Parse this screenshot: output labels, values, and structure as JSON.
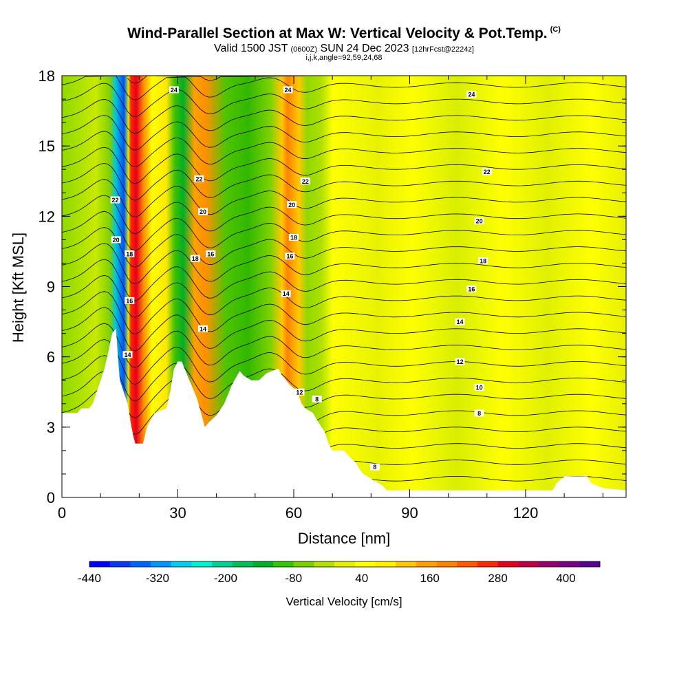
{
  "title": {
    "main": "Wind-Parallel Section at Max W: Vertical Velocity & Pot.Temp.",
    "copyright": "(C)",
    "valid_prefix": "Valid 1500 JST",
    "valid_utc": "(0600Z)",
    "valid_date": "SUN 24 Dec 2023",
    "forecast": "[12hrFcst@2224z]",
    "indices": "i,j,k,angle=92,59,24,68"
  },
  "chart_data": {
    "type": "heatmap",
    "xlabel": "Distance [nm]",
    "ylabel": "Height [Kft MSL]",
    "xlim": [
      0,
      146
    ],
    "ylim": [
      0,
      18
    ],
    "x_ticks": [
      0,
      30,
      60,
      90,
      120
    ],
    "y_ticks": [
      0,
      3,
      6,
      9,
      12,
      15,
      18
    ],
    "colorbar": {
      "label": "Vertical Velocity [cm/s]",
      "min": -440,
      "max": 460,
      "step": 40,
      "tick_values": [
        -440,
        -320,
        -200,
        -80,
        40,
        160,
        280,
        400
      ],
      "tick_labels": [
        "-440",
        "-320",
        "-200",
        "-80",
        "40",
        "160",
        "280",
        "400"
      ],
      "colors": [
        "#0000ff",
        "#0a37f5",
        "#0064ff",
        "#0096ff",
        "#00cdf0",
        "#00f0d2",
        "#00d296",
        "#00be5a",
        "#00af28",
        "#32c800",
        "#78d200",
        "#b4e100",
        "#e6f000",
        "#ffff00",
        "#fff000",
        "#ffc800",
        "#ffa000",
        "#ff8200",
        "#ff5a00",
        "#ff2800",
        "#e6001e",
        "#be0046",
        "#96006e",
        "#780087",
        "#5a0091"
      ]
    },
    "terrain_kft": [
      [
        0,
        3.6
      ],
      [
        4,
        3.6
      ],
      [
        5,
        3.8
      ],
      [
        7,
        3.8
      ],
      [
        8,
        4.0
      ],
      [
        9,
        4.5
      ],
      [
        10,
        5.0
      ],
      [
        11,
        5.5
      ],
      [
        12,
        6.2
      ],
      [
        13,
        7.0
      ],
      [
        14,
        7.2
      ],
      [
        14.5,
        6.0
      ],
      [
        15,
        5.0
      ],
      [
        16,
        4.5
      ],
      [
        17,
        4.0
      ],
      [
        18,
        3.0
      ],
      [
        18.5,
        2.6
      ],
      [
        19,
        2.3
      ],
      [
        21,
        2.3
      ],
      [
        22,
        3.0
      ],
      [
        24,
        3.6
      ],
      [
        27,
        3.8
      ],
      [
        28,
        4.5
      ],
      [
        29,
        5.5
      ],
      [
        30,
        5.8
      ],
      [
        31,
        5.8
      ],
      [
        32,
        5.4
      ],
      [
        33,
        5.0
      ],
      [
        34,
        4.6
      ],
      [
        35,
        4.2
      ],
      [
        36,
        3.6
      ],
      [
        37,
        3.0
      ],
      [
        38,
        3.2
      ],
      [
        40,
        3.5
      ],
      [
        42,
        4.0
      ],
      [
        44,
        4.8
      ],
      [
        46,
        5.4
      ],
      [
        47,
        5.2
      ],
      [
        49,
        5.0
      ],
      [
        51,
        5.0
      ],
      [
        53,
        5.3
      ],
      [
        56,
        5.5
      ],
      [
        57,
        5.2
      ],
      [
        59,
        4.8
      ],
      [
        61,
        4.5
      ],
      [
        62,
        4.0
      ],
      [
        63,
        3.8
      ],
      [
        65,
        3.6
      ],
      [
        66,
        3.3
      ],
      [
        68,
        2.8
      ],
      [
        69,
        2.3
      ],
      [
        70,
        2.0
      ],
      [
        73,
        2.0
      ],
      [
        74,
        1.8
      ],
      [
        76,
        1.5
      ],
      [
        77,
        1.2
      ],
      [
        78,
        1.0
      ],
      [
        80,
        0.8
      ],
      [
        82,
        0.6
      ],
      [
        83,
        0.5
      ],
      [
        84,
        0.3
      ],
      [
        127,
        0.3
      ],
      [
        128,
        0.6
      ],
      [
        130,
        0.9
      ],
      [
        136,
        0.9
      ],
      [
        137,
        0.6
      ],
      [
        140,
        0.4
      ],
      [
        146,
        0.3
      ]
    ],
    "contour_labels": [
      {
        "text": "24",
        "x": 29,
        "y": 17.4
      },
      {
        "text": "24",
        "x": 58.5,
        "y": 17.4
      },
      {
        "text": "24",
        "x": 106,
        "y": 17.2
      },
      {
        "text": "22",
        "x": 13.8,
        "y": 12.7
      },
      {
        "text": "22",
        "x": 35.5,
        "y": 13.6
      },
      {
        "text": "22",
        "x": 63,
        "y": 13.5
      },
      {
        "text": "22",
        "x": 110,
        "y": 13.9
      },
      {
        "text": "20",
        "x": 14,
        "y": 11.0
      },
      {
        "text": "20",
        "x": 36.5,
        "y": 12.2
      },
      {
        "text": "20",
        "x": 59.5,
        "y": 12.5
      },
      {
        "text": "20",
        "x": 108,
        "y": 11.8
      },
      {
        "text": "18",
        "x": 17.5,
        "y": 10.4
      },
      {
        "text": "18",
        "x": 34.5,
        "y": 10.2
      },
      {
        "text": "18",
        "x": 60,
        "y": 11.1
      },
      {
        "text": "18",
        "x": 109,
        "y": 10.1
      },
      {
        "text": "16",
        "x": 17.5,
        "y": 8.4
      },
      {
        "text": "16",
        "x": 38.5,
        "y": 10.4
      },
      {
        "text": "16",
        "x": 59,
        "y": 10.3
      },
      {
        "text": "16",
        "x": 106,
        "y": 8.9
      },
      {
        "text": "14",
        "x": 17,
        "y": 6.1
      },
      {
        "text": "14",
        "x": 36.5,
        "y": 7.2
      },
      {
        "text": "14",
        "x": 58,
        "y": 8.7
      },
      {
        "text": "14",
        "x": 103,
        "y": 7.5
      },
      {
        "text": "12",
        "x": 61.5,
        "y": 4.5
      },
      {
        "text": "12",
        "x": 103,
        "y": 5.8
      },
      {
        "text": "10",
        "x": 108,
        "y": 4.7
      },
      {
        "text": "8",
        "x": 66,
        "y": 4.2
      },
      {
        "text": "8",
        "x": 108,
        "y": 3.6
      },
      {
        "text": "8",
        "x": 81,
        "y": 1.3
      }
    ]
  }
}
